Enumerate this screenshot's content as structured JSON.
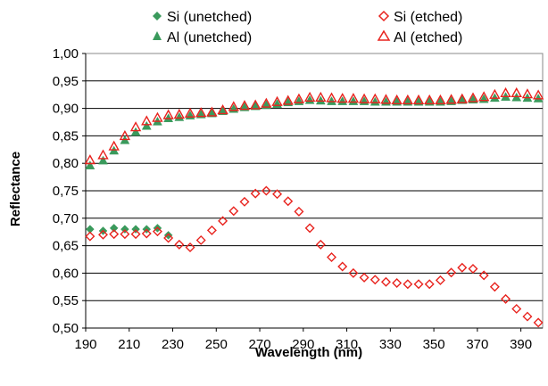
{
  "chart_data": {
    "type": "scatter",
    "title": "",
    "xlabel": "Wavelength (nm)",
    "ylabel": "Reflectance",
    "xlim": [
      190,
      400
    ],
    "ylim": [
      0.5,
      1.0
    ],
    "x_ticks": [
      190,
      210,
      230,
      250,
      270,
      290,
      310,
      330,
      350,
      370,
      390
    ],
    "x_tick_labels": [
      "190",
      "210",
      "230",
      "250",
      "270",
      "290",
      "310",
      "330",
      "350",
      "370",
      "390"
    ],
    "y_ticks": [
      0.5,
      0.55,
      0.6,
      0.65,
      0.7,
      0.75,
      0.8,
      0.85,
      0.9,
      0.95,
      1.0
    ],
    "y_tick_labels": [
      "0,50",
      "0,55",
      "0,60",
      "0,65",
      "0,70",
      "0,75",
      "0,80",
      "0,85",
      "0,90",
      "0,95",
      "1,00"
    ],
    "grid": "horizontal",
    "legend_position": "top",
    "series": [
      {
        "name": "Si (unetched)",
        "marker": "diamond-filled",
        "color": "#3a9a5c",
        "x": [
          192,
          198,
          203,
          208,
          213,
          218,
          223,
          228
        ],
        "y": [
          0.68,
          0.677,
          0.682,
          0.68,
          0.68,
          0.68,
          0.682,
          0.669
        ]
      },
      {
        "name": "Si (etched)",
        "marker": "diamond-open",
        "color": "#e8231e",
        "x": [
          192,
          198,
          203,
          208,
          213,
          218,
          223,
          228,
          233,
          238,
          243,
          248,
          253,
          258,
          263,
          268,
          273,
          278,
          283,
          288,
          293,
          298,
          303,
          308,
          313,
          318,
          323,
          328,
          333,
          338,
          343,
          348,
          353,
          358,
          363,
          368,
          373,
          378,
          383,
          388,
          393,
          398
        ],
        "y": [
          0.667,
          0.67,
          0.671,
          0.671,
          0.671,
          0.672,
          0.676,
          0.664,
          0.652,
          0.647,
          0.66,
          0.678,
          0.695,
          0.713,
          0.73,
          0.745,
          0.75,
          0.744,
          0.731,
          0.712,
          0.682,
          0.652,
          0.629,
          0.612,
          0.6,
          0.592,
          0.588,
          0.584,
          0.582,
          0.58,
          0.58,
          0.58,
          0.587,
          0.601,
          0.61,
          0.608,
          0.596,
          0.575,
          0.553,
          0.535,
          0.521,
          0.51
        ]
      },
      {
        "name": "Al (unetched)",
        "marker": "triangle-filled",
        "color": "#3a9a5c",
        "x": [
          192,
          198,
          203,
          208,
          213,
          218,
          223,
          228,
          233,
          238,
          243,
          248,
          253,
          258,
          263,
          268,
          273,
          278,
          283,
          288,
          293,
          298,
          303,
          308,
          313,
          318,
          323,
          328,
          333,
          338,
          343,
          348,
          353,
          358,
          363,
          368,
          373,
          378,
          383,
          388,
          393,
          398
        ],
        "y": [
          0.796,
          0.805,
          0.823,
          0.842,
          0.857,
          0.868,
          0.876,
          0.882,
          0.884,
          0.887,
          0.889,
          0.891,
          0.895,
          0.899,
          0.902,
          0.904,
          0.906,
          0.908,
          0.911,
          0.913,
          0.915,
          0.914,
          0.913,
          0.913,
          0.913,
          0.913,
          0.912,
          0.912,
          0.912,
          0.912,
          0.912,
          0.912,
          0.912,
          0.913,
          0.915,
          0.916,
          0.917,
          0.919,
          0.921,
          0.92,
          0.919,
          0.918
        ]
      },
      {
        "name": "Al (etched)",
        "marker": "triangle-open",
        "color": "#e8231e",
        "x": [
          192,
          198,
          203,
          208,
          213,
          218,
          223,
          228,
          233,
          238,
          243,
          248,
          253,
          258,
          263,
          268,
          273,
          278,
          283,
          288,
          293,
          298,
          303,
          308,
          313,
          318,
          323,
          328,
          333,
          338,
          343,
          348,
          353,
          358,
          363,
          368,
          373,
          378,
          383,
          388,
          393,
          398
        ],
        "y": [
          0.806,
          0.815,
          0.831,
          0.85,
          0.866,
          0.877,
          0.883,
          0.888,
          0.889,
          0.891,
          0.892,
          0.893,
          0.897,
          0.903,
          0.905,
          0.906,
          0.909,
          0.912,
          0.914,
          0.917,
          0.92,
          0.92,
          0.919,
          0.918,
          0.918,
          0.917,
          0.917,
          0.916,
          0.915,
          0.915,
          0.915,
          0.915,
          0.915,
          0.916,
          0.917,
          0.919,
          0.921,
          0.925,
          0.928,
          0.928,
          0.926,
          0.924
        ]
      }
    ]
  }
}
